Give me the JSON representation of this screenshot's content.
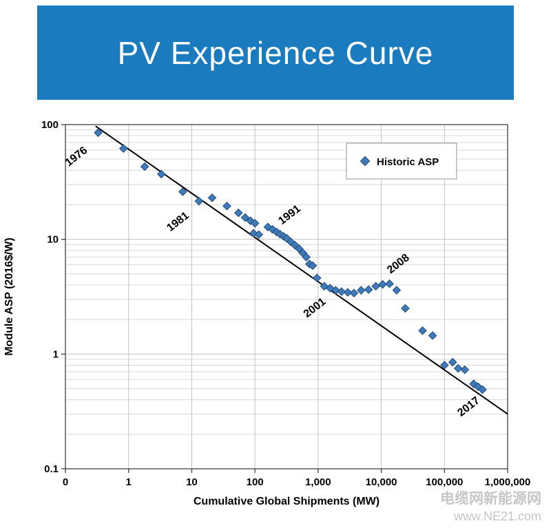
{
  "header": {
    "title": "PV Experience Curve"
  },
  "watermark": {
    "line1": "电缆网新能源网",
    "line2": "www.NE21.com"
  },
  "colors": {
    "header_bg": "#1A7CBE",
    "header_text": "#FFFFFF",
    "marker_fill": "#3E7BBD",
    "marker_edge": "#2A5580",
    "trend_line": "#000000",
    "grid_minor": "#D9D9D9",
    "grid_major": "#C3C3C3",
    "plot_border": "#3F3F3F",
    "axis_text": "#000000",
    "legend_border": "#A6A6A6",
    "watermark_text": "#C6C6C6"
  },
  "chart_data": {
    "type": "scatter",
    "title": "PV Experience Curve",
    "x_scale": "log",
    "y_scale": "log",
    "xlabel": "Cumulative Global Shipments (MW)",
    "ylabel": "Module ASP (2016$/W)",
    "xlim": [
      0.1,
      1000000
    ],
    "ylim": [
      0.1,
      100
    ],
    "x_tick_values": [
      0.1,
      1,
      10,
      100,
      1000,
      10000,
      100000,
      1000000
    ],
    "x_tick_labels": [
      "0",
      "1",
      "10",
      "100",
      "1,000",
      "10,000",
      "100,000",
      "1,000,000"
    ],
    "y_tick_values": [
      100,
      10,
      1,
      0.1
    ],
    "y_tick_labels": [
      "100",
      "10",
      "1",
      "0.1"
    ],
    "grid": "horizontal log minor + major, vertical major per decade",
    "legend": {
      "label": "Historic ASP",
      "position": "top-right"
    },
    "series": [
      {
        "name": "Historic ASP",
        "marker": "diamond",
        "points": [
          [
            0.33,
            85
          ],
          [
            0.83,
            62
          ],
          [
            1.8,
            43
          ],
          [
            3.3,
            37
          ],
          [
            7.2,
            26
          ],
          [
            13,
            21.5
          ],
          [
            21,
            23
          ],
          [
            36,
            19.5
          ],
          [
            55,
            17
          ],
          [
            70,
            15.5
          ],
          [
            85,
            14.5
          ],
          [
            100,
            13.8
          ],
          [
            95,
            11.3
          ],
          [
            115,
            11
          ],
          [
            160,
            12.8
          ],
          [
            190,
            12.2
          ],
          [
            220,
            11.6
          ],
          [
            250,
            11.1
          ],
          [
            285,
            10.6
          ],
          [
            320,
            10.2
          ],
          [
            370,
            9.5
          ],
          [
            430,
            8.9
          ],
          [
            500,
            8.3
          ],
          [
            575,
            7.6
          ],
          [
            650,
            7
          ],
          [
            730,
            6.1
          ],
          [
            820,
            5.9
          ],
          [
            960,
            4.6
          ],
          [
            1250,
            3.9
          ],
          [
            1550,
            3.75
          ],
          [
            1900,
            3.6
          ],
          [
            2350,
            3.5
          ],
          [
            2950,
            3.45
          ],
          [
            3700,
            3.4
          ],
          [
            4800,
            3.6
          ],
          [
            6300,
            3.65
          ],
          [
            8200,
            3.9
          ],
          [
            10500,
            4.05
          ],
          [
            13500,
            4.1
          ],
          [
            17500,
            3.6
          ],
          [
            24000,
            2.5
          ],
          [
            45000,
            1.6
          ],
          [
            65000,
            1.45
          ],
          [
            100000,
            0.8
          ],
          [
            135000,
            0.85
          ],
          [
            165000,
            0.75
          ],
          [
            210000,
            0.73
          ],
          [
            290000,
            0.55
          ],
          [
            340000,
            0.52
          ],
          [
            400000,
            0.49
          ]
        ]
      }
    ],
    "trendline": {
      "x1": 0.3,
      "y1": 97,
      "x2": 1000000,
      "y2": 0.3
    },
    "annotations": [
      {
        "text": "1976",
        "x": 0.16,
        "y": 50,
        "rotation": -38
      },
      {
        "text": "1981",
        "x": 6.5,
        "y": 13.5,
        "rotation": -38
      },
      {
        "text": "1991",
        "x": 380,
        "y": 15.5,
        "rotation": -38
      },
      {
        "text": "2001",
        "x": 950,
        "y": 2.4,
        "rotation": -38
      },
      {
        "text": "2008",
        "x": 20000,
        "y": 5.8,
        "rotation": -38
      },
      {
        "text": "2017",
        "x": 260000,
        "y": 0.33,
        "rotation": -38
      }
    ]
  }
}
